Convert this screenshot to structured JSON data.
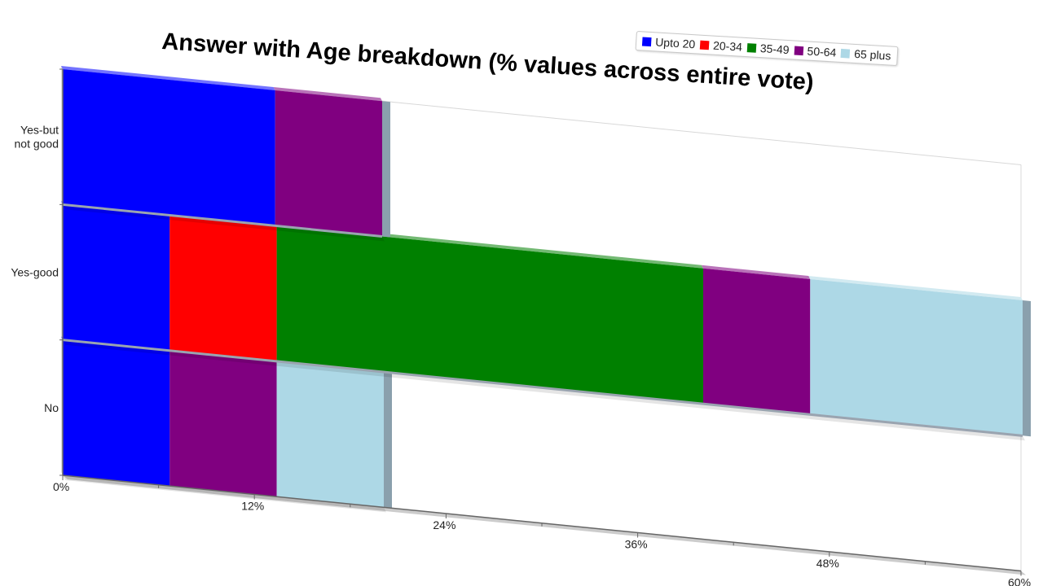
{
  "chart_data": {
    "type": "bar",
    "orientation": "horizontal",
    "stacked": true,
    "three_d": true,
    "title": "Answer with Age breakdown (% values across entire vote)",
    "xlabel": "",
    "ylabel": "",
    "xlim": [
      0,
      60
    ],
    "x_ticks": [
      "0%",
      "12%",
      "24%",
      "36%",
      "48%",
      "60%"
    ],
    "grid": false,
    "legend_position": "top-right",
    "categories": [
      {
        "label_lines": [
          "Yes-but",
          "not good"
        ]
      },
      {
        "label_lines": [
          "Yes-good"
        ]
      },
      {
        "label_lines": [
          "No"
        ]
      }
    ],
    "series": [
      {
        "name": "Upto 20",
        "color": "#0000ff",
        "values": [
          13.3,
          6.7,
          6.7
        ]
      },
      {
        "name": "20-34",
        "color": "#ff0000",
        "values": [
          0,
          6.7,
          0
        ]
      },
      {
        "name": "35-49",
        "color": "#008000",
        "values": [
          0,
          26.7,
          0
        ]
      },
      {
        "name": "50-64",
        "color": "#800080",
        "values": [
          6.7,
          6.7,
          6.7
        ]
      },
      {
        "name": "65 plus",
        "color": "#add8e6",
        "values": [
          0,
          13.3,
          6.7
        ]
      }
    ]
  }
}
